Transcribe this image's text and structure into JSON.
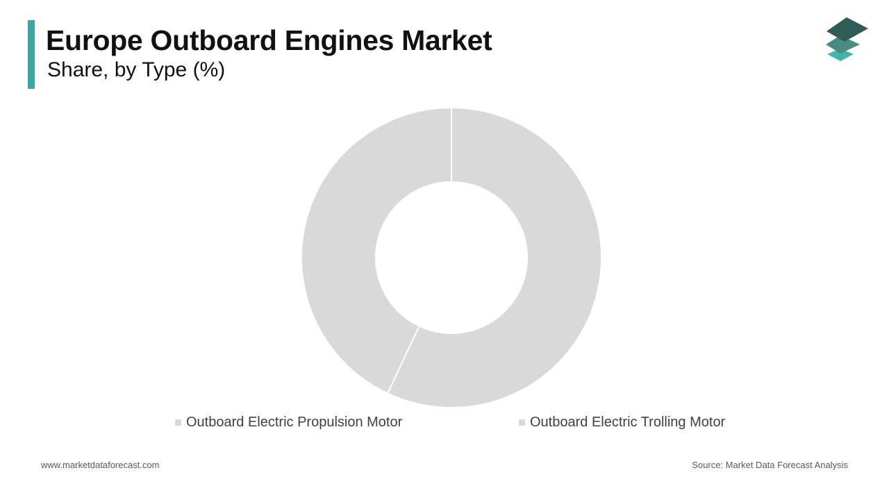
{
  "header": {
    "title": "Europe Outboard Engines Market",
    "subtitle": "Share, by Type (%)"
  },
  "colors": {
    "accent": "#3aa6a0",
    "logo_dark": "#2f5d56",
    "logo_mid": "#4a8a80",
    "logo_light": "#3fb5ab",
    "slice": "#d9d9d9",
    "slice_separator": "#ffffff"
  },
  "icons": {
    "logo": "stacked-layers-logo-icon"
  },
  "chart_data": {
    "type": "pie",
    "variant": "donut",
    "categories": [
      "Outboard Electric Propulsion Motor",
      "Outboard Electric Trolling Motor"
    ],
    "values": [
      57,
      43
    ],
    "start_angle_deg": 0,
    "direction": "clockwise",
    "data_labels_shown": false,
    "legend_position": "bottom"
  },
  "footer": {
    "website": "www.marketdataforecast.com",
    "source": "Source: Market Data Forecast Analysis"
  }
}
